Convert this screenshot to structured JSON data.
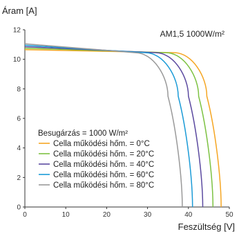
{
  "chart_data": {
    "type": "line",
    "ylabel": "Áram [A]",
    "xlabel": "Feszültség  [V]",
    "annotation": "AM1,5 1000W/m²",
    "legend_title": "Besugárzás = 1000 W/m²",
    "legend_position": "bottom-left",
    "grid": false,
    "xlim": [
      0,
      50
    ],
    "ylim": [
      0,
      12
    ],
    "x_ticks": [
      "0",
      "10",
      "20",
      "30",
      "40",
      "50"
    ],
    "y_ticks": [
      "0",
      "2",
      "4",
      "6",
      "8",
      "10",
      "12"
    ],
    "series": [
      {
        "name": "Cella működési hőm. = 0°C",
        "color": "#f5a623",
        "isc": 10.65,
        "voc": 48.0,
        "knee_v": 36.5,
        "knee_i": 10.45,
        "mid_v": 44.5,
        "mid_i": 7.5
      },
      {
        "name": "Cella működési hőm. = 20°C",
        "color": "#7dc242",
        "isc": 10.75,
        "voc": 46.0,
        "knee_v": 34.5,
        "knee_i": 10.45,
        "mid_v": 42.5,
        "mid_i": 7.5
      },
      {
        "name": "Cella működési hőm. = 40°C",
        "color": "#5b4aa0",
        "isc": 10.85,
        "voc": 43.5,
        "knee_v": 32.0,
        "knee_i": 10.45,
        "mid_v": 40.0,
        "mid_i": 7.5
      },
      {
        "name": "Cella működési hőm. = 60°C",
        "color": "#1b9bd7",
        "isc": 10.95,
        "voc": 41.0,
        "knee_v": 29.5,
        "knee_i": 10.45,
        "mid_v": 37.5,
        "mid_i": 7.5
      },
      {
        "name": "Cella működési hőm. = 80°C",
        "color": "#999999",
        "isc": 11.05,
        "voc": 38.5,
        "knee_v": 27.0,
        "knee_i": 10.45,
        "mid_v": 35.0,
        "mid_i": 7.5
      }
    ]
  }
}
